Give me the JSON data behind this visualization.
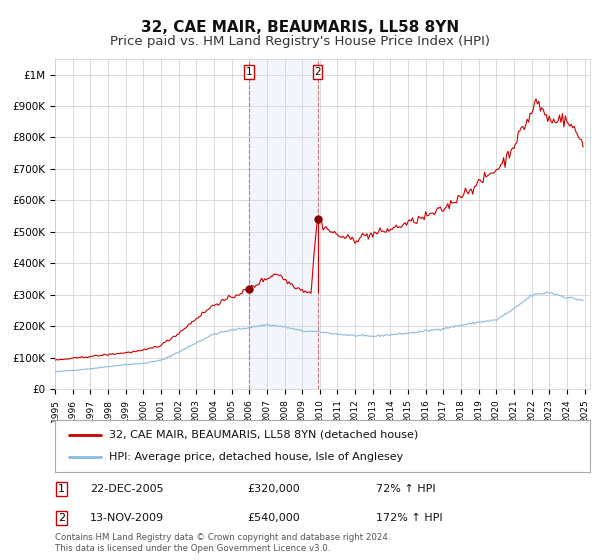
{
  "title": "32, CAE MAIR, BEAUMARIS, LL58 8YN",
  "subtitle": "Price paid vs. HM Land Registry's House Price Index (HPI)",
  "title_fontsize": 11,
  "subtitle_fontsize": 9.5,
  "ylabel_ticks": [
    "£0",
    "£100K",
    "£200K",
    "£300K",
    "£400K",
    "£500K",
    "£600K",
    "£700K",
    "£800K",
    "£900K",
    "£1M"
  ],
  "ytick_values": [
    0,
    100000,
    200000,
    300000,
    400000,
    500000,
    600000,
    700000,
    800000,
    900000,
    1000000
  ],
  "ylim": [
    0,
    1050000
  ],
  "xlim_start": 1995.0,
  "xlim_end": 2025.3,
  "transaction1_date": 2005.97,
  "transaction1_price": 320000,
  "transaction2_date": 2009.87,
  "transaction2_price": 540000,
  "hpi_line_color": "#88bbdd",
  "price_line_color": "#cc0000",
  "marker_color": "#880000",
  "vline_color": "#dd6666",
  "shade_color": "#ccddf5",
  "grid_color": "#cccccc",
  "background_color": "#ffffff",
  "legend_label_price": "32, CAE MAIR, BEAUMARIS, LL58 8YN (detached house)",
  "legend_label_hpi": "HPI: Average price, detached house, Isle of Anglesey",
  "annotation1_date": "22-DEC-2005",
  "annotation1_price": "£320,000",
  "annotation1_pct": "72% ↑ HPI",
  "annotation2_date": "13-NOV-2009",
  "annotation2_price": "£540,000",
  "annotation2_pct": "172% ↑ HPI",
  "footer": "Contains HM Land Registry data © Crown copyright and database right 2024.\nThis data is licensed under the Open Government Licence v3.0."
}
